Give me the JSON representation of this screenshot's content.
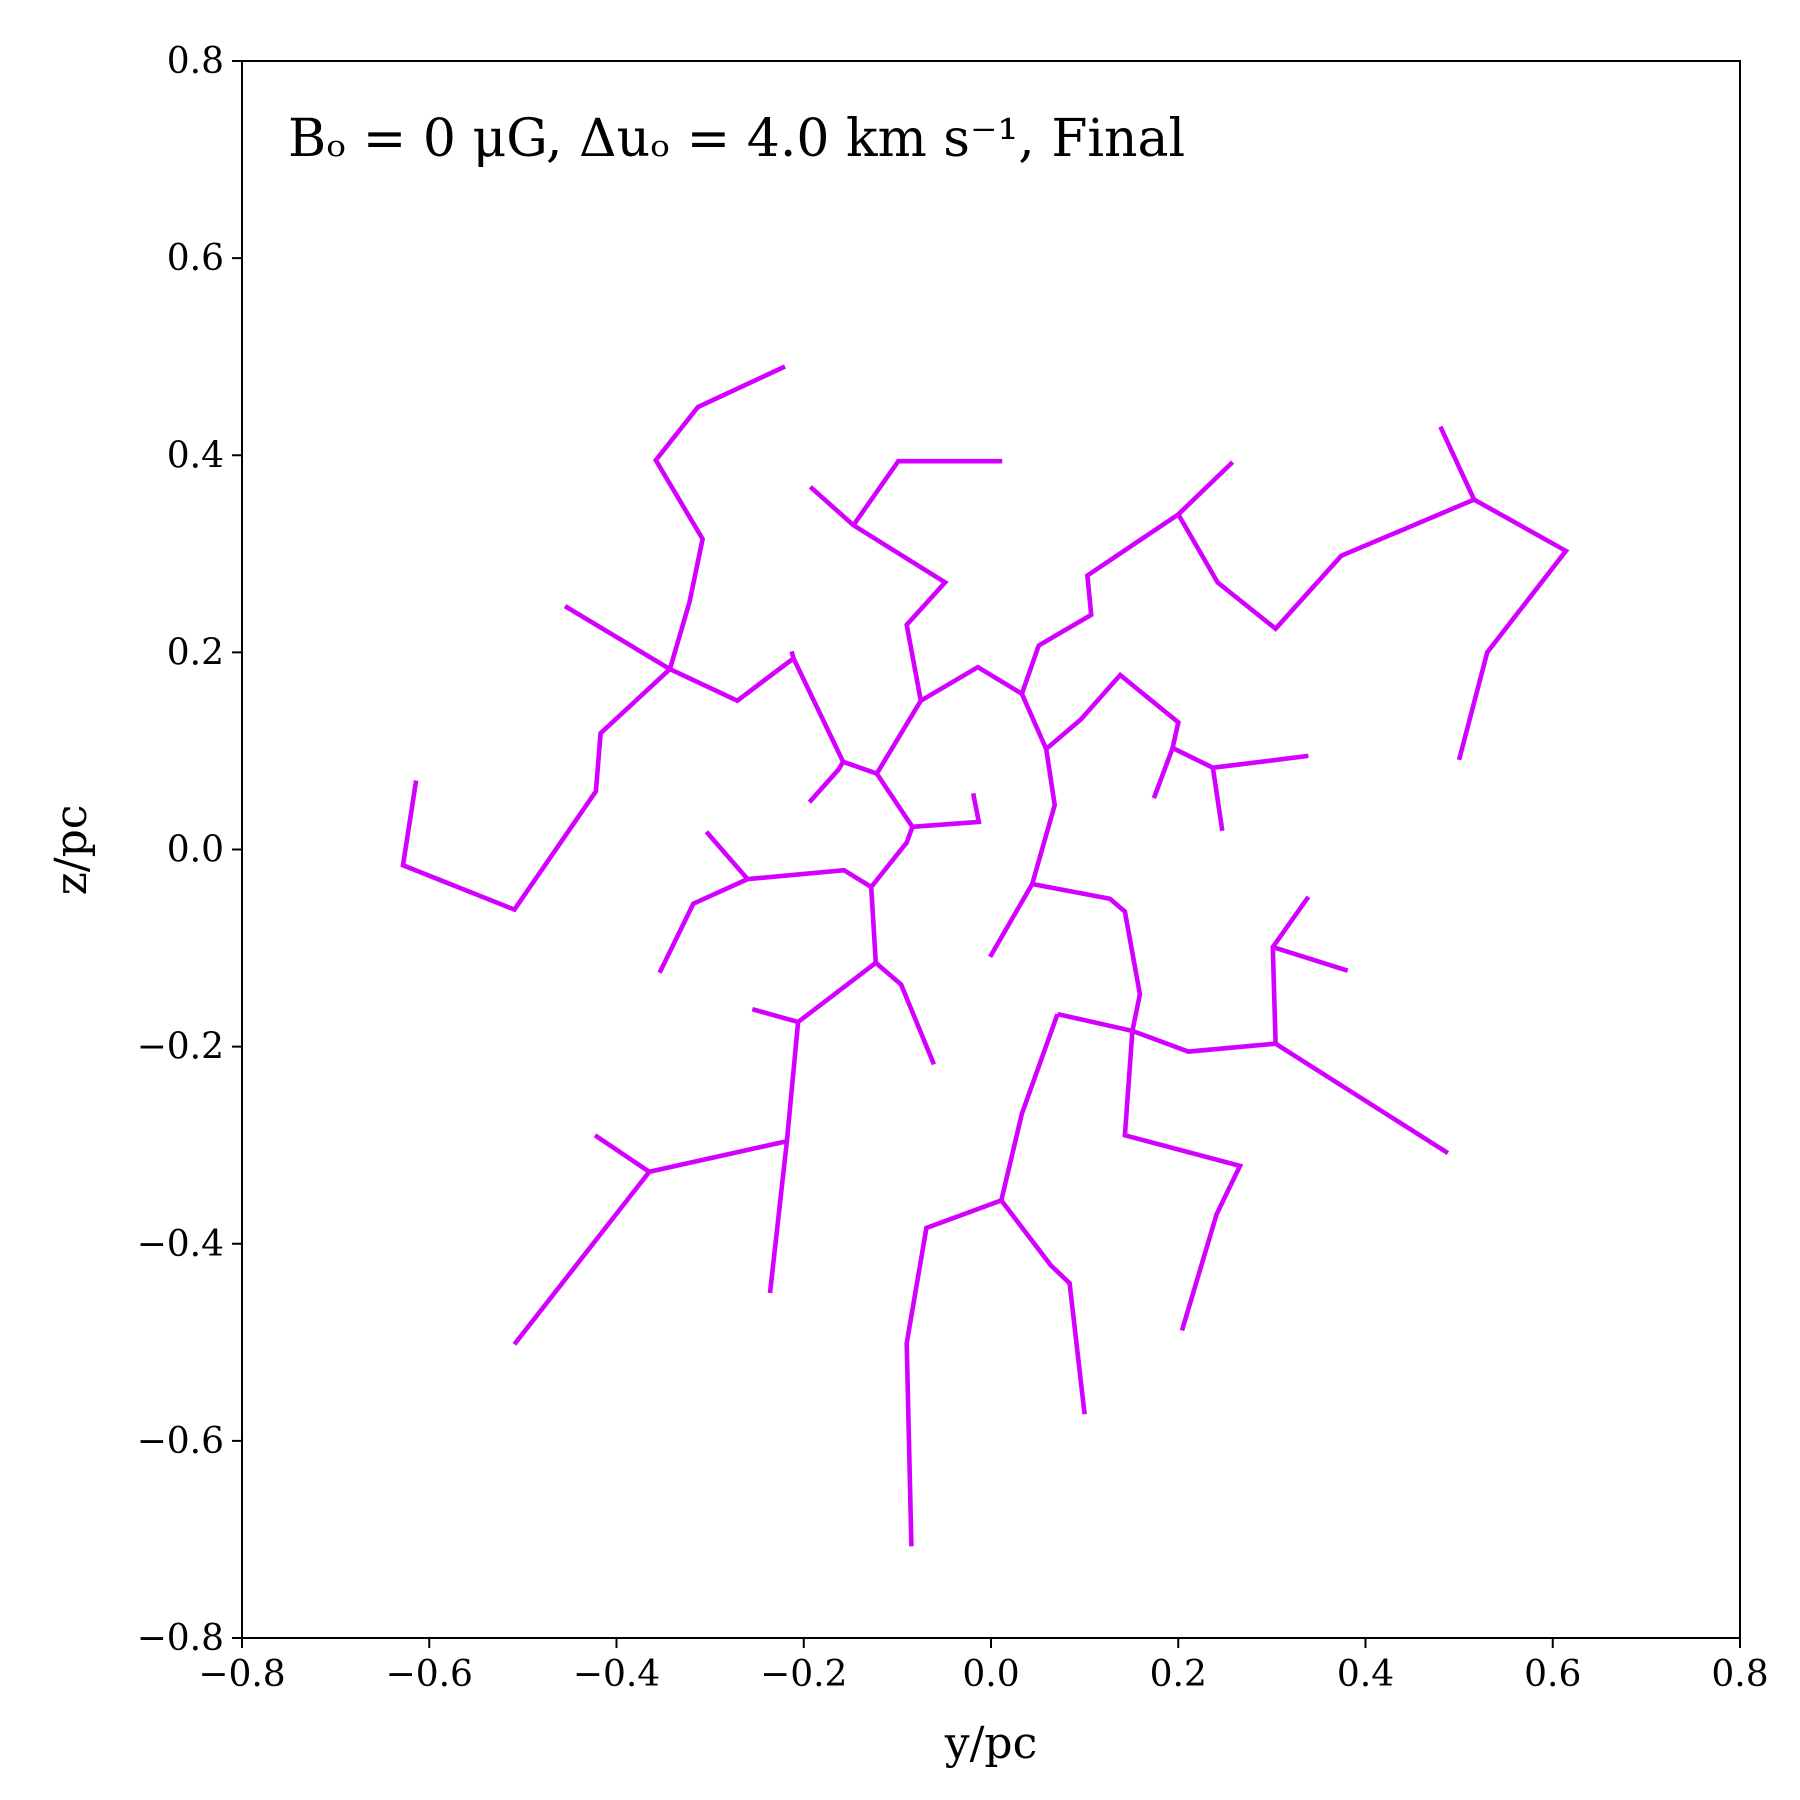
{
  "chart_data": {
    "type": "line",
    "title": "Bₒ = 0 μG, Δuₒ = 4.0 km s⁻¹, Final",
    "x_label": "y/pc",
    "y_label": "z/pc",
    "color": "#d400ff",
    "xlim": [
      -0.8,
      0.8
    ],
    "ylim": [
      -0.8,
      0.8
    ],
    "xticks": [
      {
        "value": -0.8,
        "label": "−0.8"
      },
      {
        "value": -0.6,
        "label": "−0.6"
      },
      {
        "value": -0.4,
        "label": "−0.4"
      },
      {
        "value": -0.2,
        "label": "−0.2"
      },
      {
        "value": 0,
        "label": "0.0"
      },
      0.2,
      0.4,
      0.6,
      0.8
    ],
    "yticks": [
      {
        "value": -0.8,
        "label": "−0.8"
      },
      {
        "value": -0.6,
        "label": "−0.6"
      },
      {
        "value": -0.4,
        "label": "−0.4"
      },
      {
        "value": -0.2,
        "label": "−0.2"
      },
      {
        "value": 0,
        "label": "0.0"
      },
      0.2,
      0.4,
      0.6,
      0.8
    ],
    "series": [
      {
        "x": [
          -0.22,
          -0.313,
          -0.358,
          -0.308,
          -0.322,
          -0.343,
          -0.417,
          -0.422,
          -0.509,
          -0.628,
          -0.614
        ],
        "values": [
          0.49,
          0.449,
          0.395,
          0.315,
          0.251,
          0.183,
          0.118,
          0.059,
          -0.061,
          -0.016,
          0.07
        ]
      },
      {
        "x": [
          -0.455,
          -0.343,
          -0.271,
          -0.211,
          -0.213
        ],
        "values": [
          0.247,
          0.183,
          0.151,
          0.194,
          0.201
        ]
      },
      {
        "x": [
          -0.211,
          -0.158,
          -0.163,
          -0.194
        ],
        "values": [
          0.194,
          0.089,
          0.081,
          0.048
        ]
      },
      {
        "x": [
          -0.158,
          -0.122,
          -0.075,
          -0.09,
          -0.049,
          -0.147,
          -0.193
        ],
        "values": [
          0.089,
          0.077,
          0.151,
          0.228,
          0.271,
          0.329,
          0.368
        ]
      },
      {
        "x": [
          -0.147,
          -0.099,
          0.012
        ],
        "values": [
          0.329,
          0.394,
          0.394
        ]
      },
      {
        "x": [
          -0.075,
          -0.014,
          0.033,
          0.051,
          0.107,
          0.103,
          0.2,
          0.258
        ],
        "values": [
          0.151,
          0.185,
          0.158,
          0.207,
          0.238,
          0.278,
          0.34,
          0.393
        ]
      },
      {
        "x": [
          0.2,
          0.242,
          0.304,
          0.374,
          0.516,
          0.48
        ],
        "values": [
          0.34,
          0.271,
          0.224,
          0.298,
          0.355,
          0.429
        ]
      },
      {
        "x": [
          0.516,
          0.614,
          0.53,
          0.5
        ],
        "values": [
          0.355,
          0.303,
          0.2,
          0.091
        ]
      },
      {
        "x": [
          0.033,
          0.059,
          0.096,
          0.138,
          0.2,
          0.194,
          0.174
        ],
        "values": [
          0.158,
          0.102,
          0.132,
          0.177,
          0.129,
          0.103,
          0.052
        ]
      },
      {
        "x": [
          0.194,
          0.237,
          0.339
        ],
        "values": [
          0.103,
          0.083,
          0.095
        ]
      },
      {
        "x": [
          0.237,
          0.247
        ],
        "values": [
          0.083,
          0.019
        ]
      },
      {
        "x": [
          0.059,
          0.068,
          0.044,
          -0.001
        ],
        "values": [
          0.102,
          0.045,
          -0.035,
          -0.109
        ]
      },
      {
        "x": [
          0.044,
          0.127,
          0.143,
          0.159,
          0.151,
          0.143,
          0.266,
          0.241,
          0.204
        ],
        "values": [
          -0.035,
          -0.05,
          -0.063,
          -0.147,
          -0.184,
          -0.29,
          -0.321,
          -0.37,
          -0.488
        ]
      },
      {
        "x": [
          0.071,
          0.151,
          0.211,
          0.304,
          0.301,
          0.339
        ],
        "values": [
          -0.167,
          -0.184,
          -0.205,
          -0.197,
          -0.099,
          -0.048
        ]
      },
      {
        "x": [
          0.301,
          0.381
        ],
        "values": [
          -0.099,
          -0.123
        ]
      },
      {
        "x": [
          0.304,
          0.488
        ],
        "values": [
          -0.197,
          -0.308
        ]
      },
      {
        "x": [
          0.071,
          0.033,
          0.011,
          -0.069,
          -0.09,
          -0.085
        ],
        "values": [
          -0.167,
          -0.268,
          -0.356,
          -0.384,
          -0.501,
          -0.707
        ]
      },
      {
        "x": [
          0.011,
          0.064,
          0.084,
          0.1
        ],
        "values": [
          -0.356,
          -0.422,
          -0.44,
          -0.573
        ]
      },
      {
        "x": [
          -0.122,
          -0.084,
          -0.013,
          -0.019
        ],
        "values": [
          0.077,
          0.023,
          0.028,
          0.057
        ]
      },
      {
        "x": [
          -0.084,
          -0.09,
          -0.128,
          -0.157,
          -0.26,
          -0.304
        ],
        "values": [
          0.023,
          0.007,
          -0.038,
          -0.021,
          -0.03,
          0.018
        ]
      },
      {
        "x": [
          -0.26,
          -0.318,
          -0.354
        ],
        "values": [
          -0.03,
          -0.055,
          -0.125
        ]
      },
      {
        "x": [
          -0.128,
          -0.123,
          -0.096,
          -0.061
        ],
        "values": [
          -0.038,
          -0.115,
          -0.137,
          -0.218
        ]
      },
      {
        "x": [
          -0.123,
          -0.206,
          -0.255
        ],
        "values": [
          -0.115,
          -0.175,
          -0.162
        ]
      },
      {
        "x": [
          -0.206,
          -0.218,
          -0.236
        ],
        "values": [
          -0.175,
          -0.296,
          -0.45
        ]
      },
      {
        "x": [
          -0.218,
          -0.365,
          -0.423
        ],
        "values": [
          -0.296,
          -0.327,
          -0.29
        ]
      },
      {
        "x": [
          -0.365,
          -0.509
        ],
        "values": [
          -0.327,
          -0.502
        ]
      }
    ]
  }
}
